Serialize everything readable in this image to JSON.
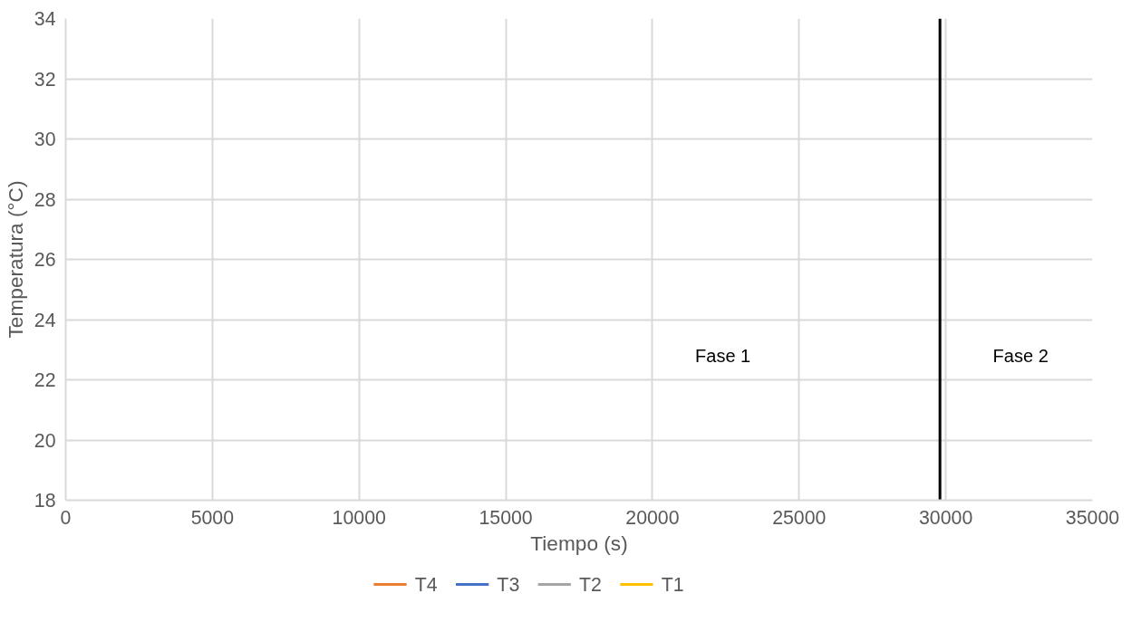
{
  "chart_data": {
    "type": "line",
    "xlabel": "Tiempo (s)",
    "ylabel": "Temperatura (°C)",
    "xlim": [
      0,
      35000
    ],
    "xticks": [
      0,
      5000,
      10000,
      15000,
      20000,
      25000,
      30000,
      35000
    ],
    "ylim": [
      18,
      34
    ],
    "yticks": [
      18,
      20,
      22,
      24,
      26,
      28,
      30,
      32,
      34
    ],
    "series": [
      {
        "name": "T4",
        "color": "#ed7d31"
      },
      {
        "name": "T3",
        "color": "#4472c4"
      },
      {
        "name": "T2",
        "color": "#a5a5a5"
      },
      {
        "name": "T1",
        "color": "#ffc000"
      },
      {
        "color": "#000000",
        "x": [
          29800,
          29800
        ],
        "values": [
          18,
          34
        ]
      }
    ],
    "annotations": [
      "Fase 1",
      "Fase 2"
    ],
    "grid": true,
    "legend": "bottom"
  }
}
